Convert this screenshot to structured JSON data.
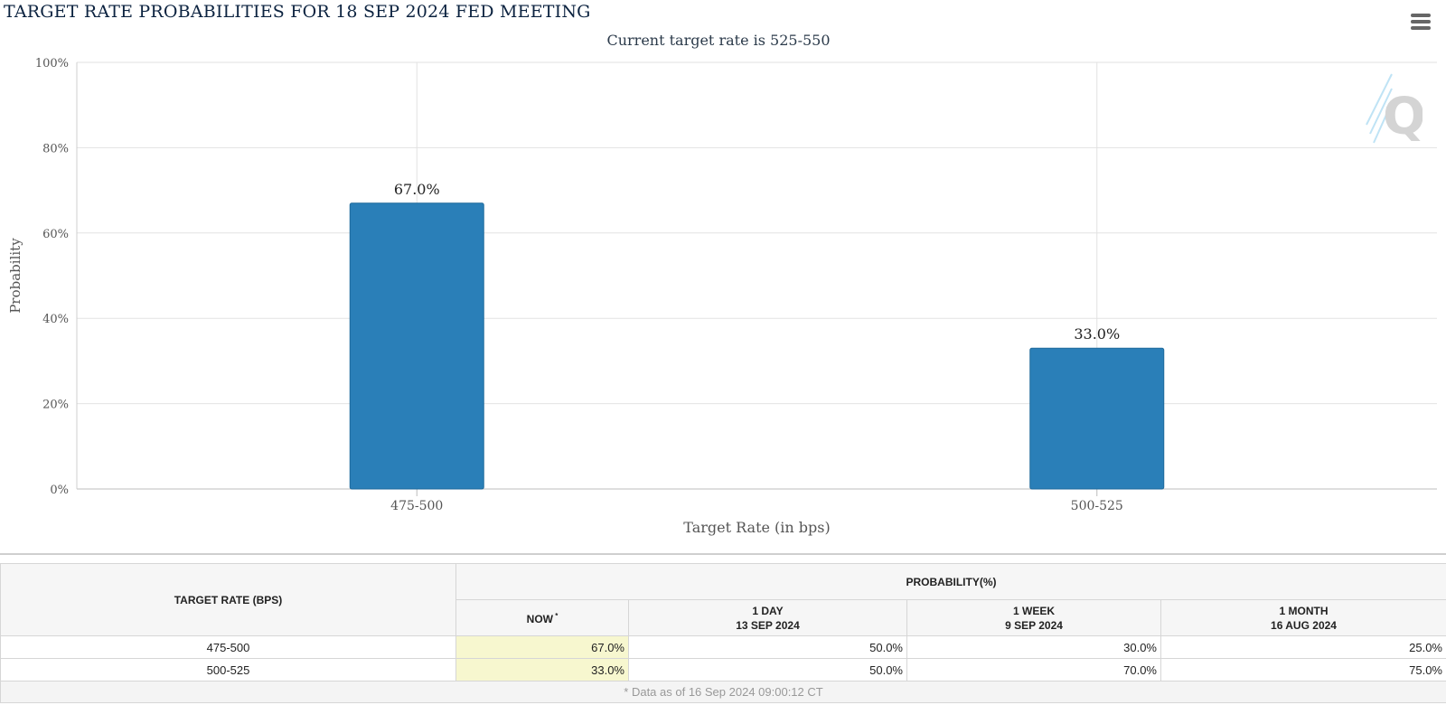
{
  "chart_data": {
    "type": "bar",
    "title": "TARGET RATE PROBABILITIES FOR 18 SEP 2024 FED MEETING",
    "subtitle": "Current target rate is 525-550",
    "xlabel": "Target Rate (in bps)",
    "ylabel": "Probability",
    "categories": [
      "475-500",
      "500-525"
    ],
    "values": [
      67.0,
      33.0
    ],
    "data_labels": [
      "67.0%",
      "33.0%"
    ],
    "ylim": [
      0,
      100
    ],
    "yticks": [
      "0%",
      "20%",
      "40%",
      "60%",
      "80%",
      "100%"
    ],
    "ytick_values": [
      0,
      20,
      40,
      60,
      80,
      100
    ],
    "bar_color": "#2a7fb8",
    "grid": true,
    "legend": "none"
  },
  "icons": {
    "menu": "hamburger-menu-icon",
    "watermark": "cme-q-logo"
  },
  "table": {
    "header_target": "TARGET RATE (BPS)",
    "header_probability": "PROBABILITY(%)",
    "columns": [
      {
        "line1": "NOW",
        "line2": "",
        "marker": "*"
      },
      {
        "line1": "1 DAY",
        "line2": "13 SEP 2024",
        "marker": ""
      },
      {
        "line1": "1 WEEK",
        "line2": "9 SEP 2024",
        "marker": ""
      },
      {
        "line1": "1 MONTH",
        "line2": "16 AUG 2024",
        "marker": ""
      }
    ],
    "rows": [
      {
        "rate": "475-500",
        "values": [
          "67.0%",
          "50.0%",
          "30.0%",
          "25.0%"
        ]
      },
      {
        "rate": "500-525",
        "values": [
          "33.0%",
          "50.0%",
          "70.0%",
          "75.0%"
        ]
      }
    ],
    "footnote": "* Data as of 16 Sep 2024 09:00:12 CT",
    "now_highlight_color": "#f7f7cf"
  }
}
